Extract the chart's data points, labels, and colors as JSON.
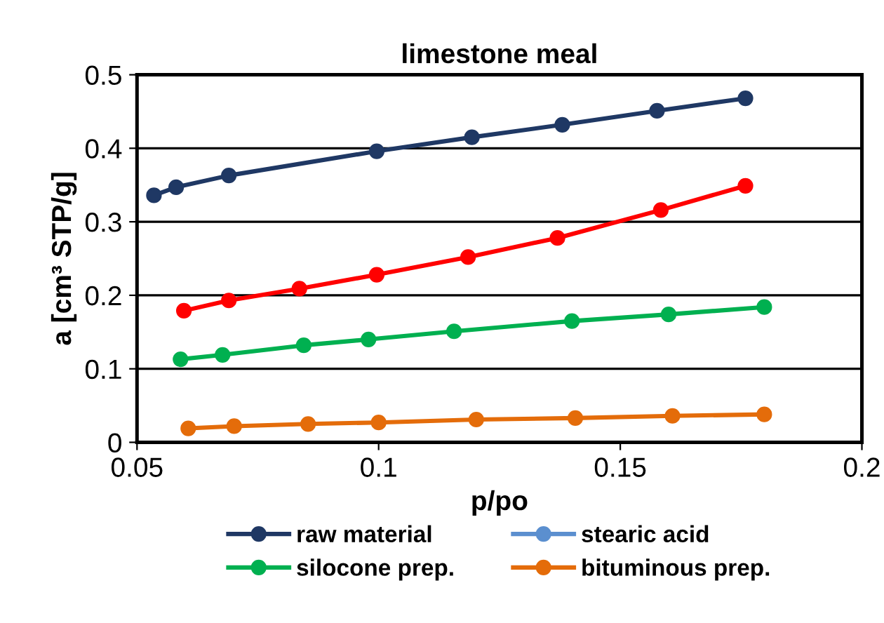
{
  "chart_data": {
    "type": "line",
    "title": "limestone meal",
    "xlabel": "p/po",
    "ylabel": "a [cm³ STP/g]",
    "xlim": [
      0.05,
      0.2
    ],
    "xticks": [
      0.05,
      0.1,
      0.15,
      0.2
    ],
    "ylim": [
      0,
      0.5
    ],
    "yticks": [
      0,
      0.1,
      0.2,
      0.3,
      0.4,
      0.5
    ],
    "grid": "y",
    "legend": "bottom",
    "marker": "circle",
    "line_style": "solid",
    "series": [
      {
        "name": "raw material",
        "color": "#1f3864",
        "x": [
          0.0535,
          0.0581,
          0.069,
          0.0996,
          0.1193,
          0.138,
          0.1576,
          0.1759
        ],
        "values": [
          0.336,
          0.347,
          0.363,
          0.396,
          0.415,
          0.432,
          0.451,
          0.468
        ]
      },
      {
        "name": "stearic acid",
        "color": "#5b8fcf"
      },
      {
        "name": "silocone prep.",
        "color": "#00b050",
        "x": [
          0.059,
          0.0677,
          0.0845,
          0.0979,
          0.1156,
          0.14,
          0.16,
          0.1798
        ],
        "values": [
          0.113,
          0.119,
          0.132,
          0.14,
          0.151,
          0.165,
          0.174,
          0.184
        ]
      },
      {
        "name": "bituminous prep.",
        "color": "#e46c0a",
        "x": [
          0.0606,
          0.0701,
          0.0854,
          0.1,
          0.1202,
          0.1407,
          0.1608,
          0.1798
        ],
        "values": [
          0.019,
          0.022,
          0.025,
          0.027,
          0.031,
          0.033,
          0.036,
          0.038
        ]
      },
      {
        "color": "#ff0000",
        "x": [
          0.0597,
          0.069,
          0.0836,
          0.0996,
          0.1185,
          0.137,
          0.1584,
          0.1759
        ],
        "values": [
          0.179,
          0.193,
          0.209,
          0.228,
          0.252,
          0.278,
          0.316,
          0.349
        ]
      }
    ]
  }
}
